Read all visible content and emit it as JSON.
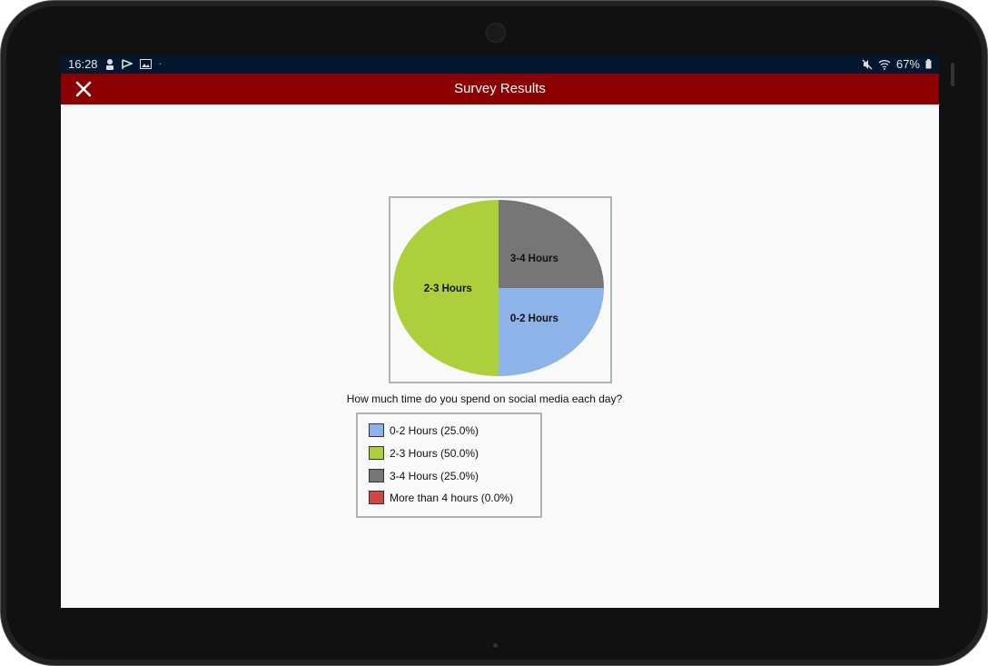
{
  "status_bar": {
    "time": "16:28",
    "left_icons": [
      "person-icon",
      "flag-icon",
      "image-icon",
      "dot-icon"
    ],
    "right_icons": [
      "mute-icon",
      "wifi-icon",
      "battery-icon"
    ],
    "battery": "67%"
  },
  "app_bar": {
    "title": "Survey Results",
    "close_icon": "close-icon"
  },
  "question": "How much time do you spend on social media each day?",
  "chart_data": {
    "type": "pie",
    "title": "",
    "slices": [
      {
        "label": "0-2 Hours",
        "value": 25.0,
        "color": "#8db3e8",
        "legend": "0-2 Hours (25.0%)"
      },
      {
        "label": "2-3 Hours",
        "value": 50.0,
        "color": "#aecf3c",
        "legend": "2-3 Hours (50.0%)"
      },
      {
        "label": "3-4 Hours",
        "value": 25.0,
        "color": "#767676",
        "legend": "3-4 Hours (25.0%)"
      },
      {
        "label": "More than 4 hours",
        "value": 0.0,
        "color": "#d04545",
        "legend": "More than 4 hours (0.0%)"
      }
    ],
    "legend_position": "bottom"
  },
  "colors": {
    "app_bar": "#8b0000",
    "status_bar": "#03172e",
    "background": "#f9f9f9"
  }
}
